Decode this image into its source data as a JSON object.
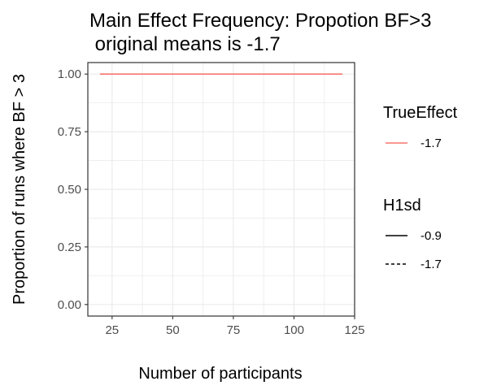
{
  "chart_data": {
    "type": "line",
    "title_line1": "Main Effect Frequency: Propotion BF>3",
    "title_line2": " original means is -1.7",
    "xlabel": "Number of participants",
    "ylabel": "Proportion of runs where BF > 3",
    "xlim": [
      15,
      125
    ],
    "ylim": [
      -0.05,
      1.05
    ],
    "x_ticks": [
      25,
      50,
      75,
      100,
      125
    ],
    "y_ticks": [
      0.0,
      0.25,
      0.5,
      0.75,
      1.0
    ],
    "x_tick_labels": [
      "25",
      "50",
      "75",
      "100",
      "125"
    ],
    "y_tick_labels": [
      "0.00",
      "0.25",
      "0.50",
      "0.75",
      "1.00"
    ],
    "grid": true,
    "series": [
      {
        "name": "-1.7",
        "color": "#f8766d",
        "linetype": "solid",
        "x": [
          20,
          120
        ],
        "y": [
          1.0,
          1.0
        ]
      }
    ],
    "legends": [
      {
        "title": "TrueEffect",
        "entries": [
          {
            "label": "-1.7",
            "color": "#f8766d",
            "linetype": "solid"
          }
        ]
      },
      {
        "title": "H1sd",
        "entries": [
          {
            "label": "-0.9",
            "color": "#000000",
            "linetype": "solid"
          },
          {
            "label": "-1.7",
            "color": "#000000",
            "linetype": "dashed"
          }
        ]
      }
    ],
    "legend_position": "right"
  }
}
